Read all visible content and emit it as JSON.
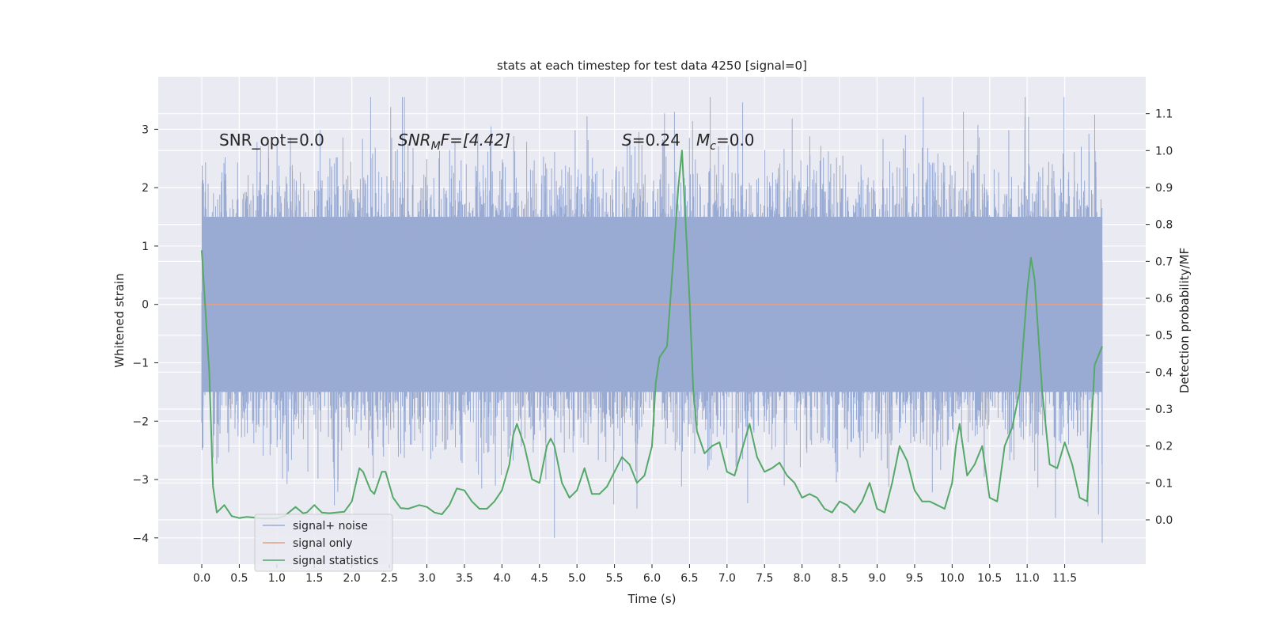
{
  "chart_data": {
    "type": "line",
    "title": "stats at each timestep for test data 4250 [signal=0]",
    "xlabel": "Time (s)",
    "ylabel": "Whitened strain",
    "y2label": "Detection probability/MF",
    "xlim": [
      -0.58,
      12.58
    ],
    "ylim": [
      -4.45,
      3.9
    ],
    "y2lim": [
      -0.12,
      1.2
    ],
    "x_ticks": [
      0.0,
      0.5,
      1.0,
      1.5,
      2.0,
      2.5,
      3.0,
      3.5,
      4.0,
      4.5,
      5.0,
      5.5,
      6.0,
      6.5,
      7.0,
      7.5,
      8.0,
      8.5,
      9.0,
      9.5,
      10.0,
      10.5,
      11.0,
      11.5
    ],
    "x_tick_labels": [
      "0.0",
      "0.5",
      "1.0",
      "1.5",
      "2.0",
      "2.5",
      "3.0",
      "3.5",
      "4.0",
      "4.5",
      "5.0",
      "5.5",
      "6.0",
      "6.5",
      "7.0",
      "7.5",
      "8.0",
      "8.5",
      "9.0",
      "9.5",
      "10.0",
      "10.5",
      "11.0",
      "11.5"
    ],
    "y_ticks": [
      -4,
      -3,
      -2,
      -1,
      0,
      1,
      2,
      3
    ],
    "y_tick_labels": [
      "−4",
      "−3",
      "−2",
      "−1",
      "0",
      "1",
      "2",
      "3"
    ],
    "y2_ticks": [
      0.0,
      0.1,
      0.2,
      0.3,
      0.4,
      0.5,
      0.6,
      0.7,
      0.8,
      0.9,
      1.0,
      1.1
    ],
    "y2_tick_labels": [
      "0.0",
      "0.1",
      "0.2",
      "0.3",
      "0.4",
      "0.5",
      "0.6",
      "0.7",
      "0.8",
      "0.9",
      "1.0",
      "1.1"
    ],
    "grid": true,
    "legend_position": "lower-left",
    "annotations": {
      "snr_opt": "SNR_opt=0.0",
      "snr_mf": "SNR",
      "snr_mf_sub": "M",
      "snr_mf_rest": "F=[4.42]",
      "s_stat": "S",
      "s_stat_rest": "=0.24",
      "mc": "M",
      "mc_sub": "c",
      "mc_rest": "=0.0"
    },
    "series": [
      {
        "name": "signal+ noise",
        "color": "#9aabd3",
        "axis": "left",
        "kind": "noise",
        "x_range": [
          0.0,
          12.0
        ],
        "sample_rate_hz": 2048,
        "typical_range": [
          -1.5,
          1.5
        ],
        "max": 3.55,
        "min": -4.08
      },
      {
        "name": "signal only",
        "color": "#e1a188",
        "axis": "left",
        "x": [
          0.0,
          12.0
        ],
        "values": [
          0.0,
          0.0
        ]
      },
      {
        "name": "signal statistics",
        "color": "#55a868",
        "axis": "right",
        "x": [
          0.0,
          0.1,
          0.15,
          0.2,
          0.3,
          0.4,
          0.5,
          0.6,
          0.8,
          1.0,
          1.1,
          1.25,
          1.35,
          1.4,
          1.5,
          1.6,
          1.7,
          1.9,
          2.0,
          2.1,
          2.15,
          2.25,
          2.3,
          2.4,
          2.45,
          2.55,
          2.65,
          2.75,
          2.9,
          3.0,
          3.1,
          3.2,
          3.3,
          3.4,
          3.5,
          3.6,
          3.7,
          3.8,
          3.9,
          4.0,
          4.1,
          4.15,
          4.2,
          4.3,
          4.4,
          4.5,
          4.6,
          4.65,
          4.7,
          4.8,
          4.9,
          5.0,
          5.1,
          5.2,
          5.3,
          5.4,
          5.5,
          5.6,
          5.7,
          5.8,
          5.9,
          6.0,
          6.05,
          6.1,
          6.2,
          6.3,
          6.35,
          6.4,
          6.5,
          6.55,
          6.6,
          6.7,
          6.8,
          6.9,
          7.0,
          7.1,
          7.2,
          7.3,
          7.4,
          7.5,
          7.6,
          7.7,
          7.8,
          7.9,
          8.0,
          8.1,
          8.2,
          8.3,
          8.4,
          8.5,
          8.6,
          8.7,
          8.8,
          8.9,
          9.0,
          9.1,
          9.2,
          9.3,
          9.4,
          9.5,
          9.6,
          9.7,
          9.8,
          9.9,
          10.0,
          10.05,
          10.1,
          10.2,
          10.3,
          10.4,
          10.5,
          10.6,
          10.7,
          10.8,
          10.9,
          11.0,
          11.05,
          11.1,
          11.2,
          11.3,
          11.4,
          11.5,
          11.6,
          11.7,
          11.8,
          11.9,
          12.0
        ],
        "values": [
          0.73,
          0.4,
          0.09,
          0.02,
          0.04,
          0.01,
          0.005,
          0.008,
          0.004,
          0.004,
          0.01,
          0.035,
          0.018,
          0.02,
          0.04,
          0.02,
          0.018,
          0.022,
          0.05,
          0.14,
          0.13,
          0.08,
          0.07,
          0.13,
          0.13,
          0.06,
          0.032,
          0.03,
          0.04,
          0.035,
          0.02,
          0.015,
          0.04,
          0.085,
          0.08,
          0.05,
          0.03,
          0.03,
          0.05,
          0.08,
          0.15,
          0.23,
          0.26,
          0.2,
          0.11,
          0.1,
          0.2,
          0.22,
          0.2,
          0.1,
          0.06,
          0.08,
          0.14,
          0.07,
          0.07,
          0.09,
          0.13,
          0.17,
          0.15,
          0.1,
          0.12,
          0.2,
          0.37,
          0.44,
          0.47,
          0.75,
          0.9,
          1.0,
          0.6,
          0.35,
          0.24,
          0.18,
          0.2,
          0.21,
          0.13,
          0.12,
          0.19,
          0.26,
          0.17,
          0.13,
          0.14,
          0.155,
          0.12,
          0.1,
          0.06,
          0.07,
          0.06,
          0.03,
          0.02,
          0.05,
          0.04,
          0.02,
          0.05,
          0.1,
          0.03,
          0.02,
          0.1,
          0.2,
          0.16,
          0.08,
          0.05,
          0.05,
          0.04,
          0.03,
          0.1,
          0.2,
          0.26,
          0.12,
          0.15,
          0.2,
          0.06,
          0.05,
          0.2,
          0.25,
          0.35,
          0.62,
          0.71,
          0.65,
          0.35,
          0.15,
          0.14,
          0.21,
          0.15,
          0.06,
          0.05,
          0.42,
          0.47
        ]
      }
    ]
  }
}
